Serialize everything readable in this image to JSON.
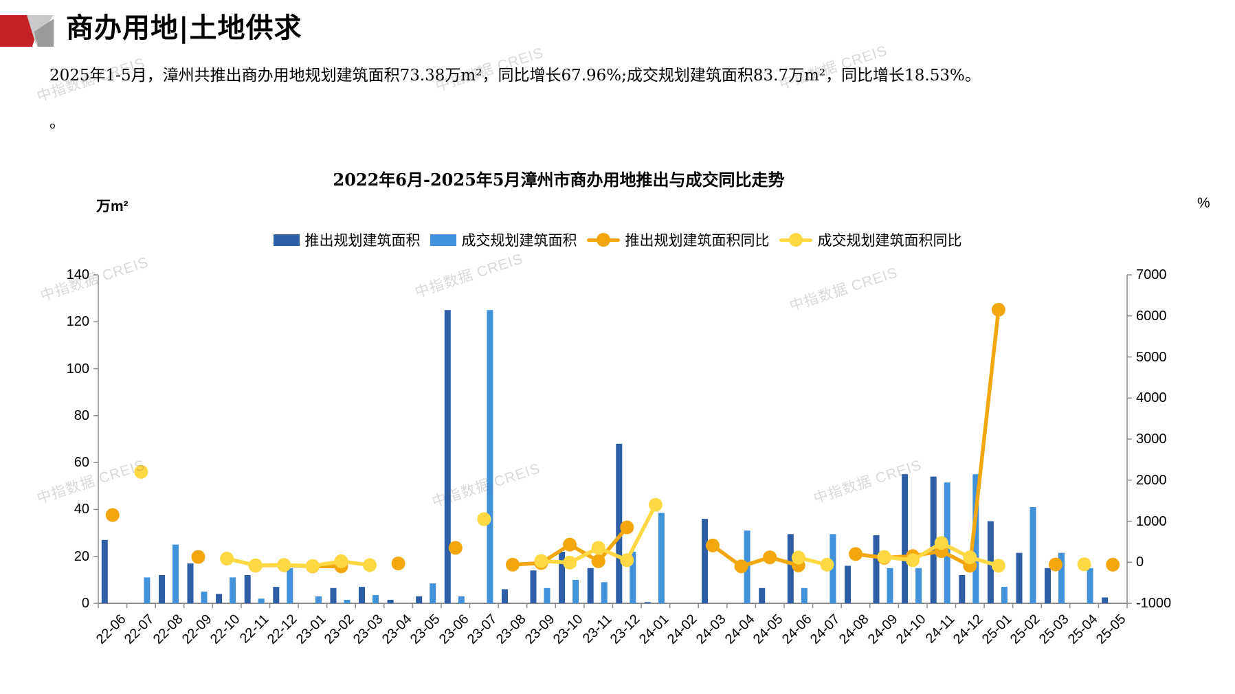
{
  "header": {
    "title": "商办用地|土地供求"
  },
  "summary": {
    "line1": "2025年1-5月，漳州共推出商办用地规划建筑面积73.38万m²，同比增长67.96%;成交规划建筑面积83.7万m²，同比增长18.53%。",
    "line2": "。"
  },
  "watermark": {
    "text": "中指数据 CREIS"
  },
  "chart_data": {
    "type": "bar",
    "subtype": "bar+line dual axis combo",
    "title": "2022年6月-2025年5月漳州市商办用地推出与成交同比走势",
    "legend_position": "top",
    "grid": false,
    "left_axis": {
      "unit": "万m²",
      "min": 0,
      "max": 140,
      "step": 20,
      "ticks": [
        140,
        120,
        100,
        80,
        60,
        40,
        20,
        0
      ]
    },
    "right_axis": {
      "unit": "%",
      "min": -1000,
      "max": 7000,
      "step": 1000,
      "ticks": [
        7000,
        6000,
        5000,
        4000,
        3000,
        2000,
        1000,
        0,
        -1000
      ]
    },
    "categories": [
      "22-06",
      "22-07",
      "22-08",
      "22-09",
      "22-10",
      "22-11",
      "22-12",
      "23-01",
      "23-02",
      "23-03",
      "23-04",
      "23-05",
      "23-06",
      "23-07",
      "23-08",
      "23-09",
      "23-10",
      "23-11",
      "23-12",
      "24-01",
      "24-02",
      "24-03",
      "24-04",
      "24-05",
      "24-06",
      "24-07",
      "24-08",
      "24-09",
      "24-10",
      "24-11",
      "24-12",
      "25-01",
      "25-02",
      "25-03",
      "25-04",
      "25-05"
    ],
    "series": [
      {
        "name": "推出规划建筑面积",
        "type": "bar",
        "axis": "left",
        "color": "#2E5EA6",
        "values": [
          27,
          0,
          12,
          17,
          4,
          12,
          7,
          0,
          6.5,
          7,
          1.5,
          3,
          125,
          0,
          6,
          14,
          22,
          15,
          68,
          0.5,
          0,
          36,
          0,
          6.5,
          29.5,
          0,
          16,
          29,
          55,
          54,
          12,
          35,
          21.5,
          15,
          0,
          2.5
        ]
      },
      {
        "name": "成交规划建筑面积",
        "type": "bar",
        "axis": "left",
        "color": "#4191DB",
        "values": [
          0,
          11,
          25,
          5,
          11,
          2,
          15,
          3,
          1.5,
          3.5,
          0,
          8.5,
          3,
          125,
          0,
          6.5,
          10,
          9,
          22,
          38.5,
          0,
          0,
          31,
          0,
          6.5,
          29.5,
          0,
          15,
          15,
          51.5,
          55,
          7,
          41,
          21.5,
          15,
          0
        ]
      },
      {
        "name": "推出规划建筑面积同比",
        "type": "line",
        "axis": "right",
        "color": "#F3A70E",
        "values": [
          1150,
          null,
          null,
          130,
          null,
          -80,
          -70,
          -100,
          -100,
          null,
          -30,
          null,
          350,
          null,
          -60,
          -20,
          430,
          25,
          850,
          null,
          null,
          410,
          -100,
          120,
          -75,
          null,
          200,
          110,
          150,
          270,
          -85,
          6150,
          null,
          -55,
          null,
          -60
        ]
      },
      {
        "name": "成交规划建筑面积同比",
        "type": "line",
        "axis": "right",
        "color": "#FFD943",
        "values": [
          null,
          2200,
          null,
          null,
          90,
          -75,
          -65,
          -90,
          25,
          -70,
          null,
          null,
          null,
          1050,
          null,
          30,
          -10,
          350,
          50,
          1400,
          null,
          null,
          null,
          null,
          115,
          -60,
          null,
          130,
          50,
          470,
          120,
          -85,
          null,
          null,
          -50,
          null
        ]
      }
    ]
  }
}
